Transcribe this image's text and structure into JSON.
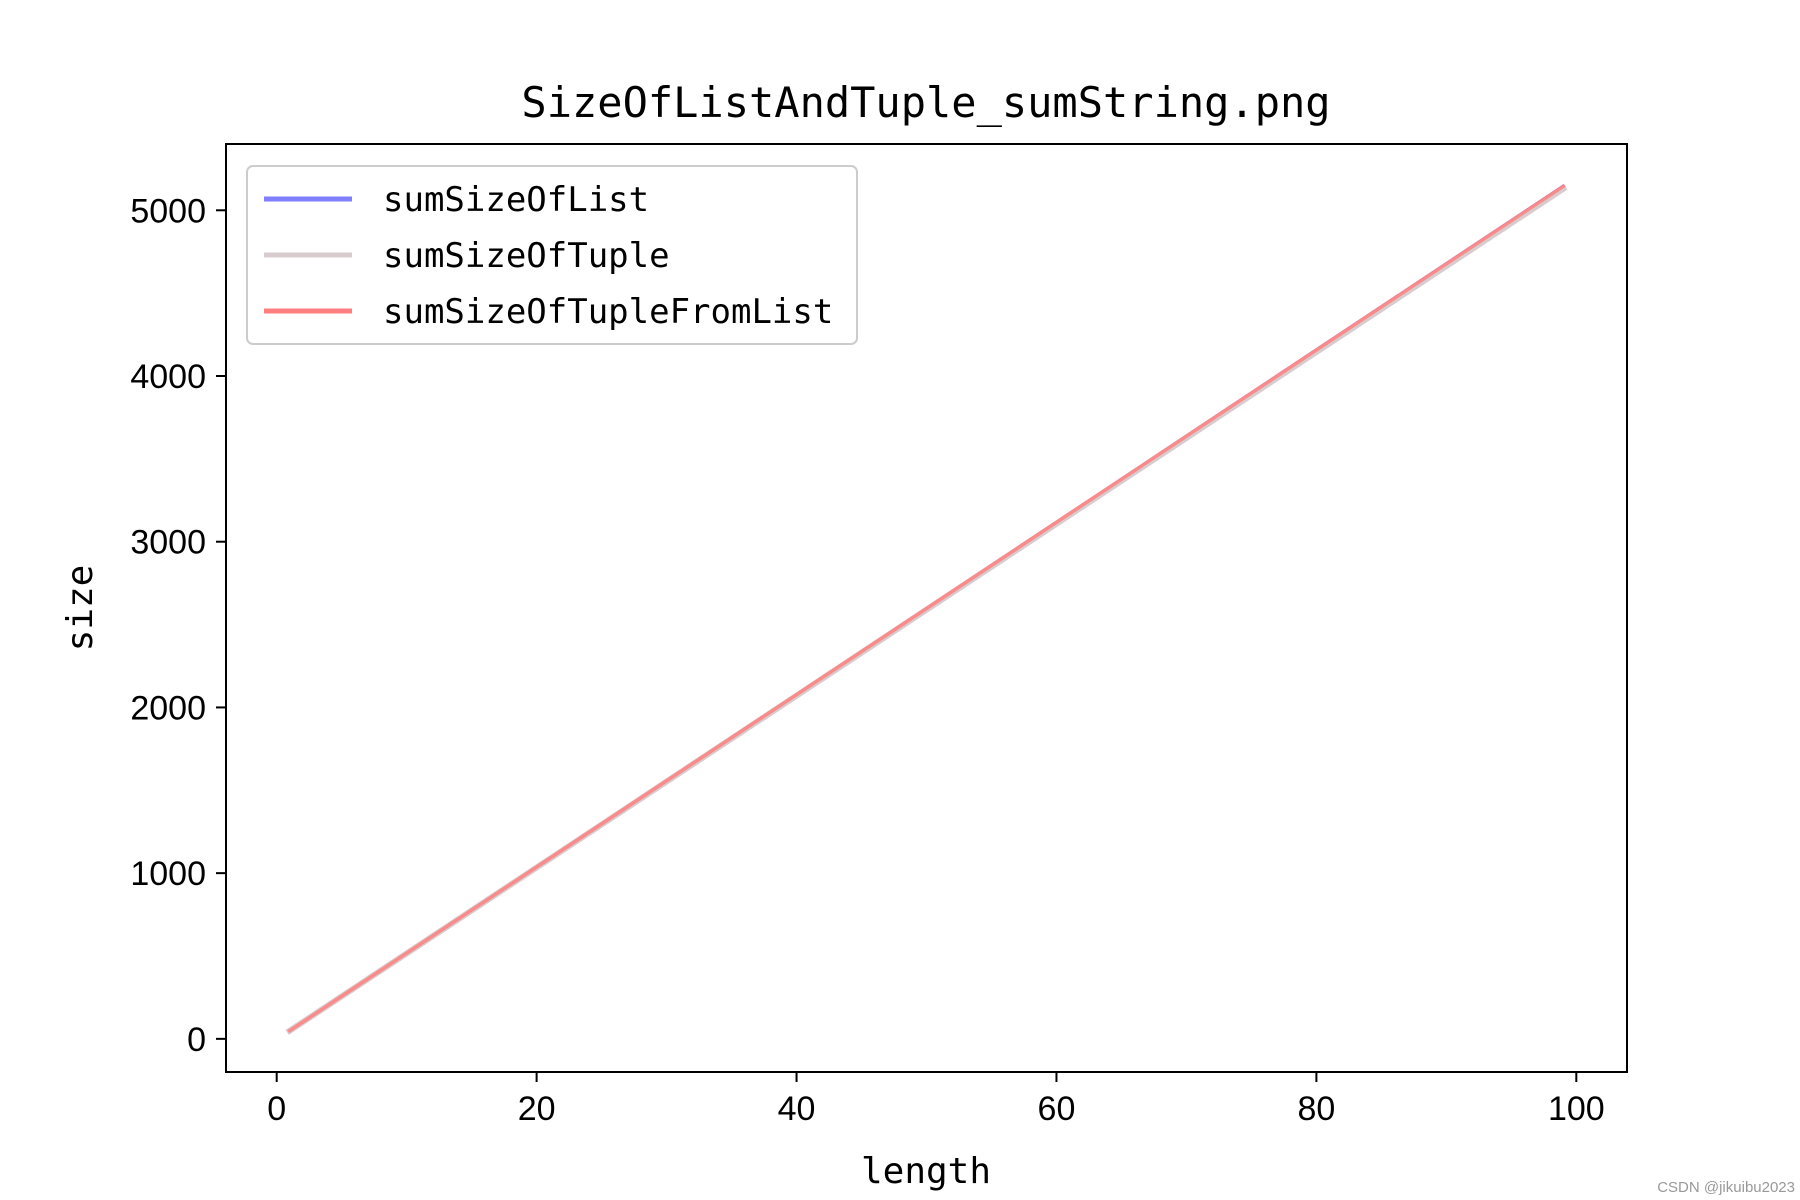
{
  "watermark": "CSDN @jikuibu2023",
  "chart_data": {
    "type": "line",
    "title": "SizeOfListAndTuple_sumString.png",
    "xlabel": "length",
    "ylabel": "size",
    "xlim": [
      -3.9,
      103.9
    ],
    "ylim": [
      -200,
      5400
    ],
    "xticks": [
      0,
      20,
      40,
      60,
      80,
      100
    ],
    "yticks": [
      0,
      1000,
      2000,
      3000,
      4000,
      5000
    ],
    "xtick_labels": [
      "0",
      "20",
      "40",
      "60",
      "80",
      "100"
    ],
    "ytick_labels": [
      "0",
      "1000",
      "2000",
      "3000",
      "4000",
      "5000"
    ],
    "grid": false,
    "legend_position": "upper-left",
    "x": [
      1,
      99
    ],
    "series": [
      {
        "name": "sumSizeOfList",
        "color": "#7f7fff",
        "values": [
          49,
          5145
        ]
      },
      {
        "name": "sumSizeOfTuple",
        "color": "#d8cccf",
        "values": [
          49,
          5130
        ]
      },
      {
        "name": "sumSizeOfTupleFromList",
        "color": "#ff7f7f",
        "values": [
          49,
          5145
        ]
      }
    ]
  }
}
